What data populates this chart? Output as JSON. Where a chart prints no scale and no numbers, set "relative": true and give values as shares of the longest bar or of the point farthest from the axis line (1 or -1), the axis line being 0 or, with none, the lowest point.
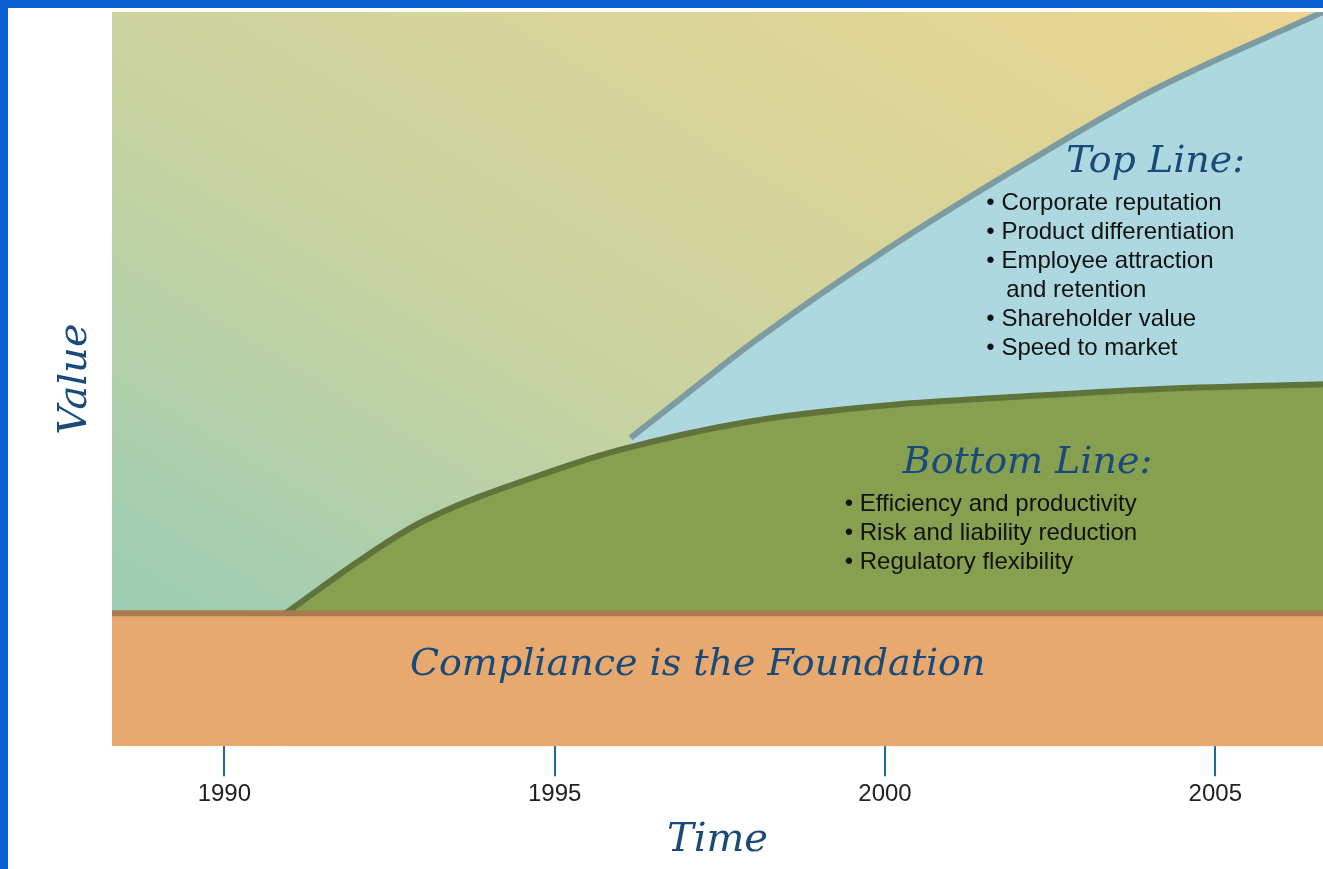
{
  "chart_data": {
    "type": "area",
    "relative": true,
    "xlabel": "Time",
    "ylabel": "Value",
    "xlim": [
      1988.3,
      2006.63
    ],
    "xticks": [
      1990,
      1995,
      2000,
      2005
    ],
    "marker": "none",
    "series": [
      {
        "color": "#e8a96e",
        "x": [
          1988.3,
          2006.63
        ],
        "values": [
          0.181,
          0.181
        ]
      },
      {
        "color": "#86a050",
        "x": [
          1990.93,
          1992,
          1993,
          1995,
          1996,
          1998,
          2000,
          2002,
          2004,
          2006.63
        ],
        "values": [
          0.181,
          0.25,
          0.306,
          0.376,
          0.404,
          0.443,
          0.464,
          0.476,
          0.486,
          0.493
        ]
      },
      {
        "color": "#aed8e0",
        "x": [
          1996.15,
          1997,
          1998,
          2000,
          2002,
          2004,
          2006.63
        ],
        "values": [
          0.42,
          0.48,
          0.55,
          0.675,
          0.787,
          0.891,
          1
        ]
      }
    ],
    "annotations": [
      "Top Line:",
      "• Corporate reputation\n• Product differentiation\n• Employee attraction\n   and retention\n• Shareholder value\n• Speed to market",
      "Bottom Line:",
      "• Efficiency and productivity\n• Risk and liability reduction\n• Regulatory flexibility",
      "Compliance is the Foundation"
    ]
  }
}
